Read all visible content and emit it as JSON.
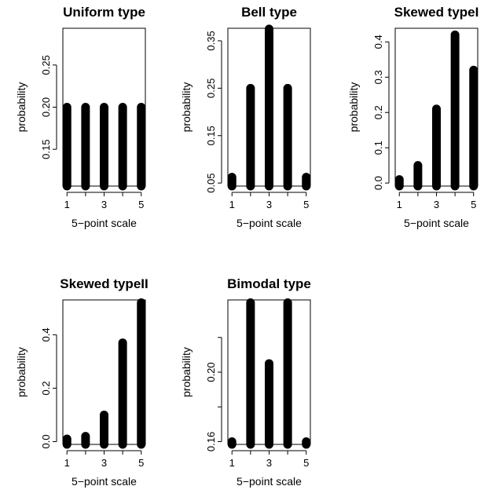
{
  "chart_data": [
    {
      "type": "bar",
      "title": "Uniform type",
      "xlabel": "5−point scale",
      "ylabel": "probability",
      "categories": [
        "1",
        "2",
        "3",
        "4",
        "5"
      ],
      "x_tick_labels": [
        "1",
        "3",
        "5"
      ],
      "values": [
        0.2,
        0.2,
        0.2,
        0.2,
        0.2
      ],
      "ylim": [
        0.11,
        0.29
      ],
      "y_ticks": [
        "0.15",
        "0.20",
        "0.25"
      ]
    },
    {
      "type": "bar",
      "title": "Bell type",
      "xlabel": "5−point scale",
      "ylabel": "probability",
      "categories": [
        "1",
        "2",
        "3",
        "4",
        "5"
      ],
      "x_tick_labels": [
        "1",
        "3",
        "5"
      ],
      "values": [
        0.0625,
        0.25,
        0.375,
        0.25,
        0.0625
      ],
      "ylim": [
        0.05,
        0.37
      ],
      "y_ticks": [
        "0.05",
        "0.15",
        "0.25",
        "0.35"
      ]
    },
    {
      "type": "bar",
      "title": "Skewed typeI",
      "xlabel": "5−point scale",
      "ylabel": "probability",
      "categories": [
        "1",
        "2",
        "3",
        "4",
        "5"
      ],
      "x_tick_labels": [
        "1",
        "3",
        "5"
      ],
      "values": [
        0.01,
        0.05,
        0.21,
        0.42,
        0.32
      ],
      "ylim": [
        0,
        0.43
      ],
      "y_ticks": [
        "0.0",
        "0.1",
        "0.2",
        "0.3",
        "0.4"
      ]
    },
    {
      "type": "bar",
      "title": "Skewed typeII",
      "xlabel": "5−point scale",
      "ylabel": "probability",
      "categories": [
        "1",
        "2",
        "3",
        "4",
        "5"
      ],
      "x_tick_labels": [
        "1",
        "3",
        "5"
      ],
      "values": [
        0.01,
        0.02,
        0.1,
        0.37,
        0.52
      ],
      "ylim": [
        0,
        0.52
      ],
      "y_ticks": [
        "0.0",
        "0.2",
        "0.4"
      ]
    },
    {
      "type": "bar",
      "title": "Bimodal type",
      "xlabel": "5−point scale",
      "ylabel": "probability",
      "categories": [
        "1",
        "2",
        "3",
        "4",
        "5"
      ],
      "x_tick_labels": [
        "1",
        "3",
        "5"
      ],
      "values": [
        0.16,
        0.24,
        0.205,
        0.24,
        0.16
      ],
      "ylim": [
        0.16,
        0.24
      ],
      "y_ticks": [
        "0.16",
        "0.20"
      ],
      "y_minor_ticks": [
        0.18,
        0.22
      ]
    }
  ]
}
